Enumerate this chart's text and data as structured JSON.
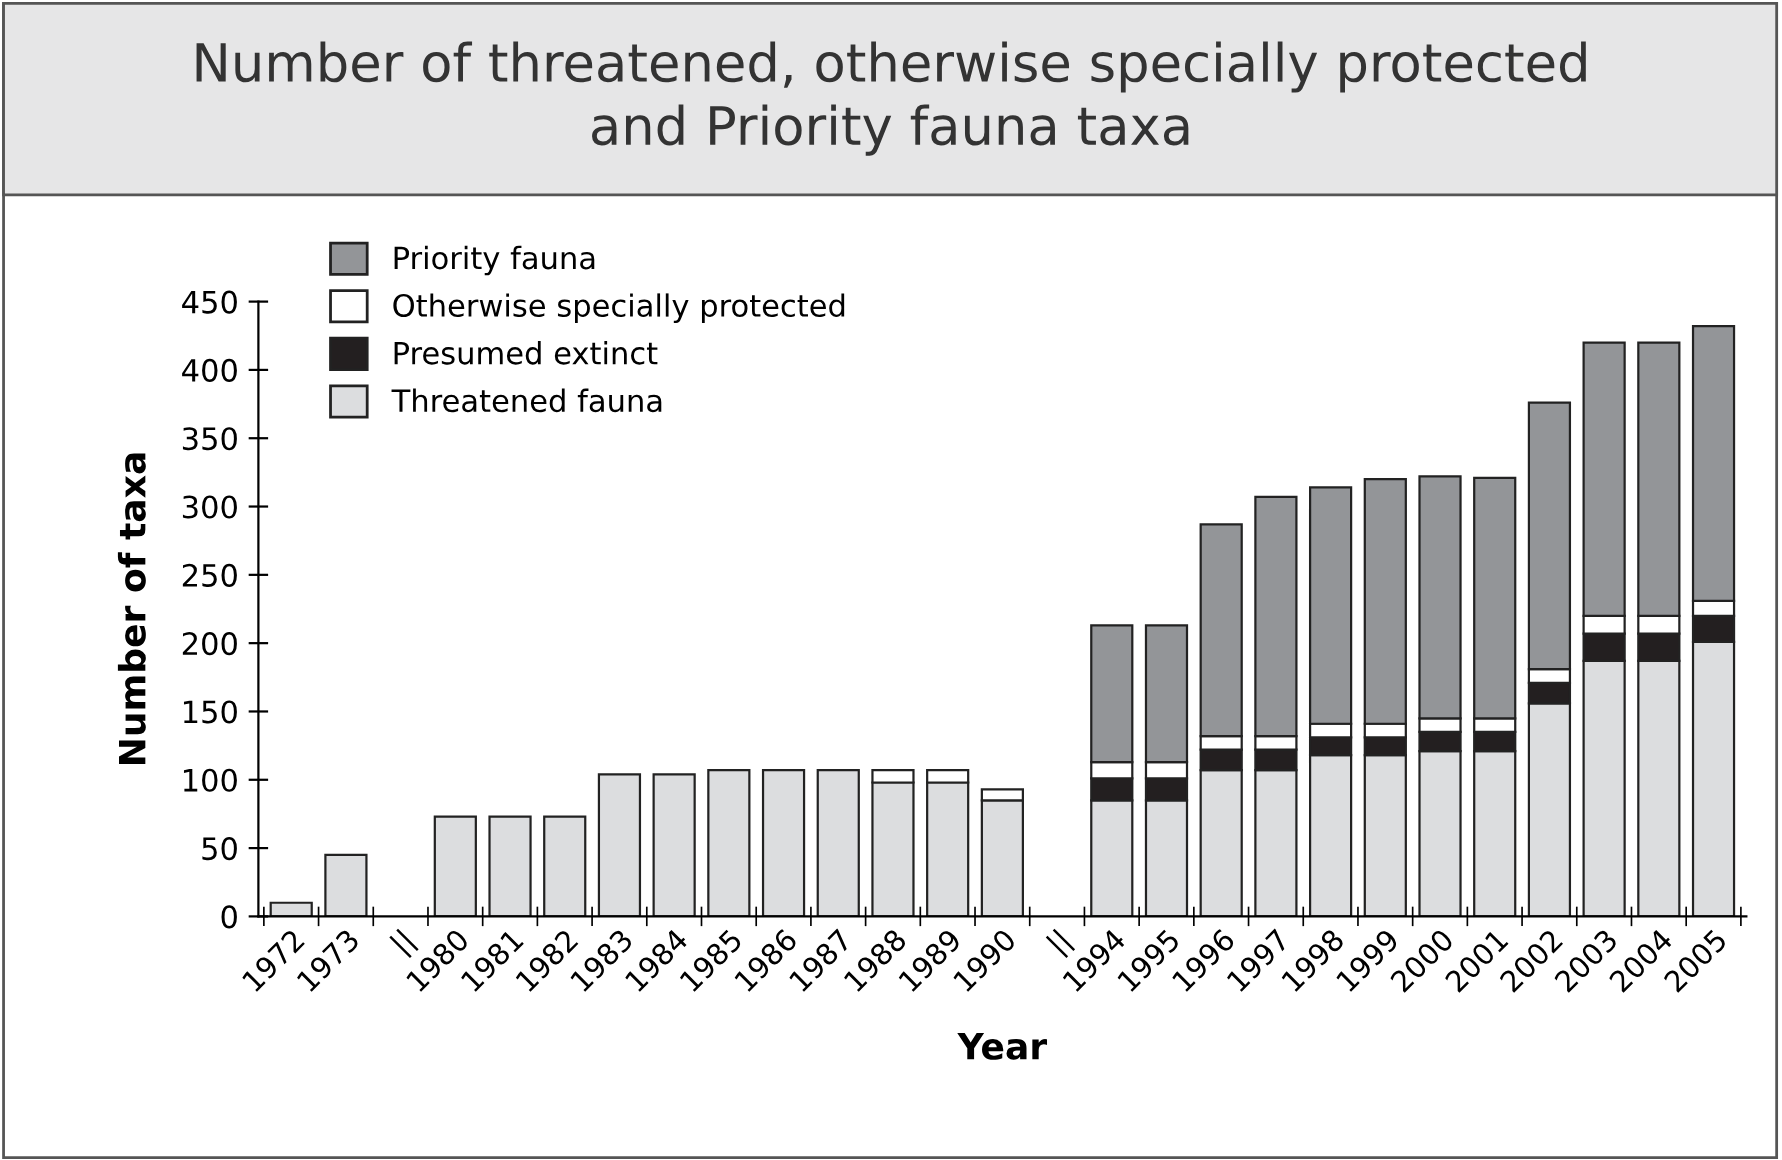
{
  "chart_data": {
    "type": "bar",
    "stacked": true,
    "title": "Number of threatened, otherwise specially protected\nand Priority fauna taxa",
    "xlabel": "Year",
    "ylabel": "Number of taxa",
    "categories": [
      "1972",
      "1973",
      "||",
      "1980",
      "1981",
      "1982",
      "1983",
      "1984",
      "1985",
      "1986",
      "1987",
      "1988",
      "1989",
      "1990",
      "||",
      "1994",
      "1995",
      "1996",
      "1997",
      "1998",
      "1999",
      "2000",
      "2001",
      "2002",
      "2003",
      "2004",
      "2005"
    ],
    "series": [
      {
        "name": "Threatened fauna",
        "color": "#dcdddf",
        "values": [
          10,
          45,
          null,
          73,
          73,
          73,
          104,
          104,
          107,
          107,
          107,
          98,
          98,
          85,
          null,
          85,
          85,
          107,
          107,
          118,
          118,
          121,
          121,
          156,
          187,
          187,
          201
        ]
      },
      {
        "name": "Presumed extinct",
        "color": "#231f20",
        "values": [
          null,
          null,
          null,
          null,
          null,
          null,
          null,
          null,
          null,
          null,
          null,
          null,
          null,
          null,
          null,
          16,
          16,
          15,
          15,
          13,
          13,
          14,
          14,
          15,
          20,
          20,
          19
        ]
      },
      {
        "name": "Otherwise specially protected",
        "color": "#ffffff",
        "values": [
          null,
          null,
          null,
          null,
          null,
          null,
          null,
          null,
          null,
          null,
          null,
          9,
          9,
          8,
          null,
          12,
          12,
          10,
          10,
          10,
          10,
          10,
          10,
          10,
          13,
          13,
          11
        ]
      },
      {
        "name": "Priority fauna",
        "color": "#939598",
        "values": [
          null,
          null,
          null,
          null,
          null,
          null,
          null,
          null,
          null,
          null,
          null,
          null,
          null,
          null,
          null,
          100,
          100,
          155,
          175,
          173,
          179,
          177,
          176,
          195,
          200,
          200,
          201
        ]
      }
    ],
    "ylim": [
      0,
      450
    ],
    "yticks": [
      0,
      50,
      100,
      150,
      200,
      250,
      300,
      350,
      400,
      450
    ],
    "legend": "top left",
    "grid": false
  }
}
